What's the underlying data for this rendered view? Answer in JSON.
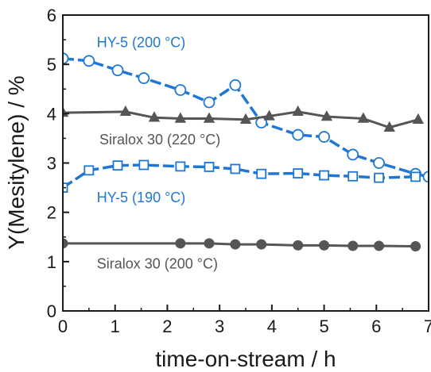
{
  "chart_data": {
    "type": "line",
    "xlabel": "time-on-stream / h",
    "ylabel": "Y(Mesitylene) / %",
    "xlim": [
      0,
      7
    ],
    "ylim": [
      0,
      6
    ],
    "xticks": [
      "0",
      "1",
      "2",
      "3",
      "4",
      "5",
      "6",
      "7"
    ],
    "yticks": [
      "0",
      "1",
      "2",
      "3",
      "4",
      "5",
      "6"
    ],
    "grid": false,
    "series": [
      {
        "name": "HY-5 (200 °C)",
        "color": "#1f77d4",
        "line_style": "dashed",
        "marker": "circle-open",
        "x": [
          0.0,
          0.5,
          1.05,
          1.55,
          2.25,
          2.8,
          3.3,
          3.8,
          4.5,
          5.0,
          5.55,
          6.05,
          6.75,
          7.0
        ],
        "y": [
          5.12,
          5.07,
          4.88,
          4.72,
          4.48,
          4.23,
          4.58,
          3.82,
          3.57,
          3.53,
          3.17,
          3.0,
          2.78,
          2.72
        ]
      },
      {
        "name": "HY-5 (190 °C)",
        "color": "#1f77d4",
        "line_style": "dashed",
        "marker": "square-open",
        "x": [
          0.0,
          0.5,
          1.05,
          1.55,
          2.25,
          2.8,
          3.3,
          3.8,
          4.5,
          5.0,
          5.55,
          6.05,
          6.75
        ],
        "y": [
          2.5,
          2.85,
          2.95,
          2.96,
          2.93,
          2.92,
          2.88,
          2.78,
          2.79,
          2.75,
          2.73,
          2.7,
          2.72
        ]
      },
      {
        "name": "Siralox 30 (220 °C)",
        "color": "#555555",
        "line_style": "solid",
        "marker": "triangle-filled",
        "x": [
          0.0,
          1.2,
          1.75,
          2.25,
          2.8,
          3.5,
          3.95,
          4.5,
          5.05,
          5.75,
          6.25,
          6.8
        ],
        "y": [
          4.02,
          4.04,
          3.92,
          3.9,
          3.9,
          3.88,
          3.95,
          4.04,
          3.94,
          3.9,
          3.72,
          3.88
        ]
      },
      {
        "name": "Siralox 30 (200 °C)",
        "color": "#555555",
        "line_style": "solid",
        "marker": "circle-filled",
        "x": [
          0.0,
          2.25,
          2.8,
          3.3,
          3.8,
          4.5,
          5.0,
          5.55,
          6.05,
          6.75
        ],
        "y": [
          1.37,
          1.37,
          1.37,
          1.35,
          1.35,
          1.33,
          1.33,
          1.32,
          1.32,
          1.31
        ]
      }
    ],
    "annotations": [
      {
        "text": "HY-5 (200 °C)",
        "color": "#1f77d4",
        "x": 0.65,
        "y": 5.35
      },
      {
        "text": "Siralox 30 (220 °C)",
        "color": "#555555",
        "x": 0.7,
        "y": 3.38
      },
      {
        "text": "HY-5 (190 °C)",
        "color": "#1f77d4",
        "x": 0.65,
        "y": 2.2
      },
      {
        "text": "Siralox 30 (200 °C)",
        "color": "#555555",
        "x": 0.65,
        "y": 0.86
      }
    ]
  }
}
